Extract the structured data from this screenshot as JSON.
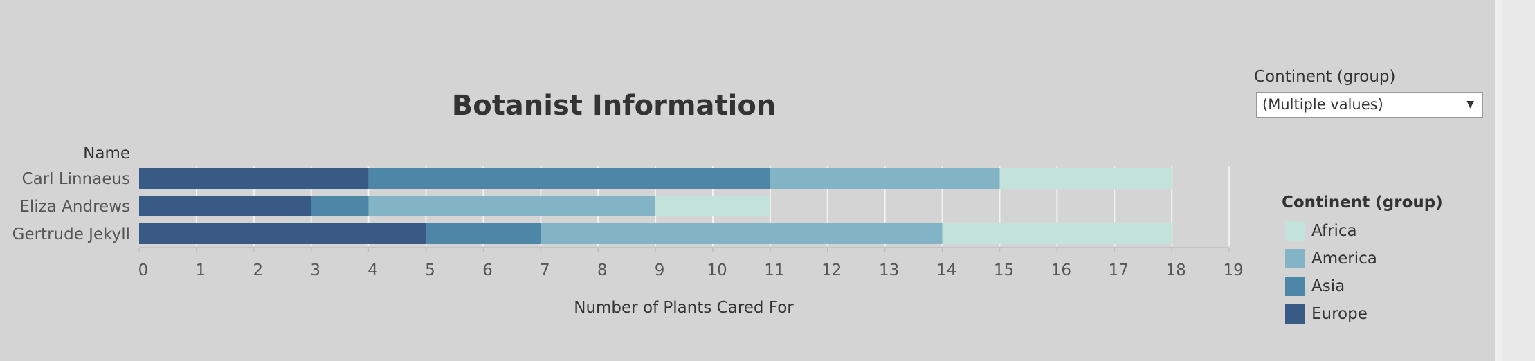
{
  "chart_data": {
    "type": "bar",
    "orientation": "horizontal",
    "stacked": true,
    "title": "Botanist Information",
    "row_header": "Name",
    "xlabel": "Number of Plants Cared For",
    "categories": [
      "Carl Linnaeus",
      "Eliza Andrews",
      "Gertrude Jekyll"
    ],
    "series": [
      {
        "name": "Europe",
        "color": "#3a5a86",
        "values": [
          4,
          3,
          5
        ]
      },
      {
        "name": "Asia",
        "color": "#4e86a8",
        "values": [
          7,
          1,
          2
        ]
      },
      {
        "name": "America",
        "color": "#82b4c5",
        "values": [
          4,
          5,
          7
        ]
      },
      {
        "name": "Africa",
        "color": "#c3e3da",
        "values": [
          3,
          2,
          4
        ]
      }
    ],
    "xlim": [
      0,
      19
    ],
    "xticks": [
      "0",
      "1",
      "2",
      "3",
      "4",
      "5",
      "6",
      "7",
      "8",
      "9",
      "10",
      "11",
      "12",
      "13",
      "14",
      "15",
      "16",
      "17",
      "18",
      "19"
    ],
    "grid": true,
    "legend_position": "right"
  },
  "filter": {
    "label": "Continent (group)",
    "value": "(Multiple values)"
  },
  "legend": {
    "title": "Continent (group)",
    "items": [
      {
        "label": "Africa",
        "color": "#c3e3da"
      },
      {
        "label": "America",
        "color": "#82b4c5"
      },
      {
        "label": "Asia",
        "color": "#4e86a8"
      },
      {
        "label": "Europe",
        "color": "#3a5a86"
      }
    ]
  },
  "icons": {
    "dropdown": "caret-down-icon"
  }
}
